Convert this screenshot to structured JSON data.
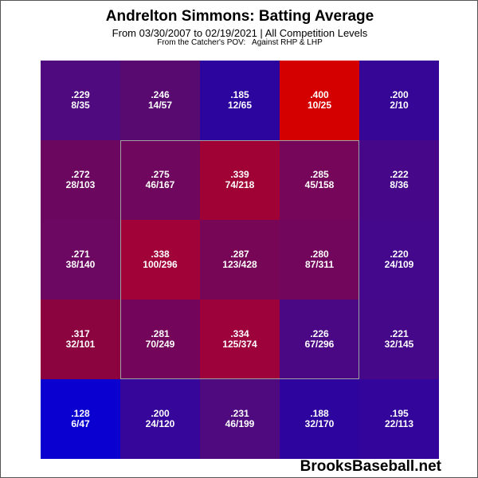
{
  "chart_data": {
    "type": "heatmap",
    "title": "Andrelton Simmons: Batting Average",
    "subtitle": "From 03/30/2007 to 02/19/2021 | All Competition Levels",
    "note": "From the Catcher's POV:   Against RHP & LHP",
    "rows": 5,
    "cols": 5,
    "strike_zone": {
      "row_start": 1,
      "row_end": 3,
      "col_start": 1,
      "col_end": 3
    },
    "cells": [
      [
        {
          "avg": ".229",
          "hits": "8/35",
          "color": "#4e0a7e"
        },
        {
          "avg": ".246",
          "hits": "14/57",
          "color": "#580a70"
        },
        {
          "avg": ".185",
          "hits": "12/65",
          "color": "#2c049e"
        },
        {
          "avg": ".400",
          "hits": "10/25",
          "color": "#d40000"
        },
        {
          "avg": ".200",
          "hits": "2/10",
          "color": "#360696"
        }
      ],
      [
        {
          "avg": ".272",
          "hits": "28/103",
          "color": "#6c0760"
        },
        {
          "avg": ".275",
          "hits": "46/167",
          "color": "#6e075d"
        },
        {
          "avg": ".339",
          "hits": "74/218",
          "color": "#a10236"
        },
        {
          "avg": ".285",
          "hits": "45/158",
          "color": "#75065a"
        },
        {
          "avg": ".222",
          "hits": "8/36",
          "color": "#460888"
        }
      ],
      [
        {
          "avg": ".271",
          "hits": "38/140",
          "color": "#6c0762"
        },
        {
          "avg": ".338",
          "hits": "100/296",
          "color": "#a10238"
        },
        {
          "avg": ".287",
          "hits": "123/428",
          "color": "#780656"
        },
        {
          "avg": ".280",
          "hits": "87/311",
          "color": "#72065c"
        },
        {
          "avg": ".220",
          "hits": "24/109",
          "color": "#43088b"
        }
      ],
      [
        {
          "avg": ".317",
          "hits": "32/101",
          "color": "#8c043f"
        },
        {
          "avg": ".281",
          "hits": "70/249",
          "color": "#73065b"
        },
        {
          "avg": ".334",
          "hits": "125/374",
          "color": "#9d023a"
        },
        {
          "avg": ".226",
          "hits": "67/296",
          "color": "#4a0885"
        },
        {
          "avg": ".221",
          "hits": "32/145",
          "color": "#450889"
        }
      ],
      [
        {
          "avg": ".128",
          "hits": "6/47",
          "color": "#0a00d0"
        },
        {
          "avg": ".200",
          "hits": "24/120",
          "color": "#36069a"
        },
        {
          "avg": ".231",
          "hits": "46/199",
          "color": "#500a80"
        },
        {
          "avg": ".188",
          "hits": "32/170",
          "color": "#2e049e"
        },
        {
          "avg": ".195",
          "hits": "22/113",
          "color": "#33059a"
        }
      ]
    ]
  },
  "watermark": "BrooksBaseball.net"
}
